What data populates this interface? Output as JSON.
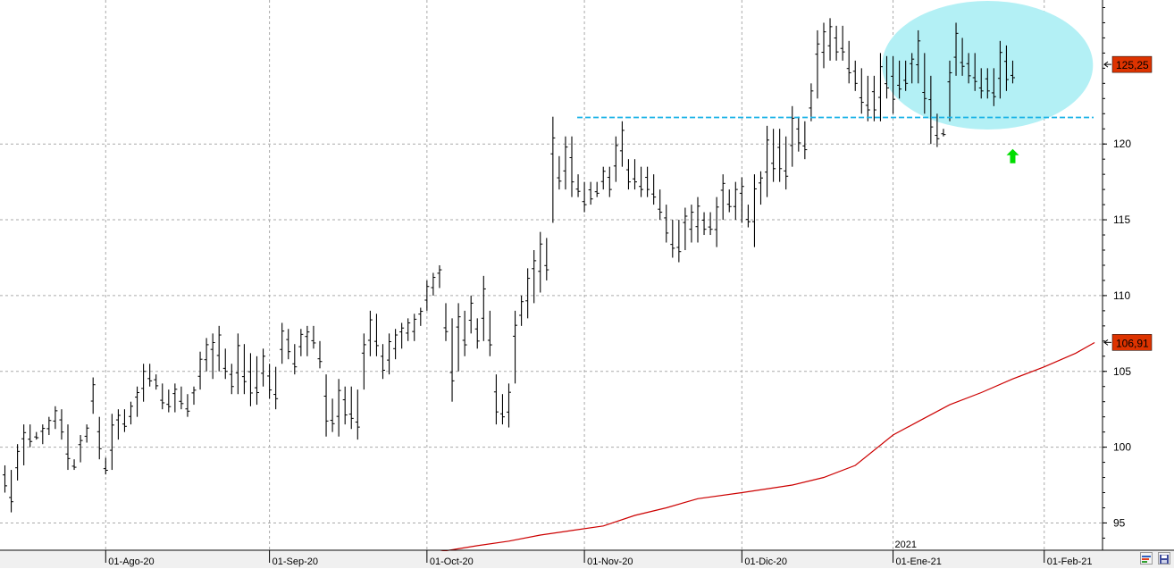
{
  "chart_data": {
    "type": "ohlc",
    "title": "",
    "xlabel": "",
    "ylabel": "",
    "ylim": [
      93.2,
      129.5
    ],
    "y_ticks": [
      95,
      100,
      105,
      110,
      115,
      120
    ],
    "x_ticks": [
      {
        "label": "01-Ago-20",
        "bar": 16
      },
      {
        "label": "01-Sep-20",
        "bar": 42
      },
      {
        "label": "01-Oct-20",
        "bar": 67
      },
      {
        "label": "01-Nov-20",
        "bar": 92
      },
      {
        "label": "01-Dic-20",
        "bar": 117
      },
      {
        "label": "01-Ene-21",
        "bar": 141
      },
      {
        "label": "01-Feb-21",
        "bar": 165
      }
    ],
    "year_marker": {
      "label": "2021",
      "bar": 141
    },
    "grid": true,
    "bars_high": [
      98.8,
      98.5,
      100.2,
      101.5,
      101.5,
      101.0,
      101.5,
      102.0,
      102.7,
      102.5,
      101.5,
      99.2,
      100.8,
      101.5,
      104.6,
      102.0,
      99.3,
      102.2,
      102.5,
      102.5,
      103.0,
      104.0,
      105.5,
      105.5,
      104.8,
      104.2,
      103.8,
      104.2,
      104.0,
      103.5,
      104.0,
      106.3,
      107.2,
      107.5,
      108.0,
      106.5,
      105.5,
      107.5,
      106.8,
      106.2,
      106.0,
      106.5,
      105.5,
      105.3,
      108.2,
      107.8,
      106.8,
      107.8,
      108.0,
      108.0,
      107.0,
      104.8,
      103.2,
      104.5,
      104.0,
      104.0,
      103.8,
      107.5,
      109.0,
      108.8,
      106.8,
      107.5,
      107.8,
      108.2,
      108.5,
      108.8,
      109.2,
      111.0,
      111.5,
      112.0,
      109.5,
      108.5,
      109.5,
      109.0,
      110.0,
      108.5,
      111.3,
      109.0,
      104.8,
      103.5,
      104.2,
      109.0,
      110.0,
      111.8,
      113.0,
      114.2,
      113.8,
      121.8,
      119.2,
      120.5,
      120.5,
      118.0,
      117.5,
      117.5,
      117.5,
      118.5,
      118.5,
      120.5,
      121.5,
      119.0,
      119.0,
      118.5,
      118.5,
      118.0,
      117.0,
      116.0,
      115.0,
      115.0,
      115.8,
      116.0,
      116.5,
      115.5,
      115.5,
      116.5,
      118.0,
      117.0,
      117.5,
      117.8,
      116.0,
      118.0,
      118.2,
      121.2,
      121.0,
      121.0,
      120.5,
      122.5,
      121.8,
      121.5,
      124.0,
      127.5,
      128.0,
      128.3,
      127.8,
      127.8,
      126.8,
      125.5,
      125.0,
      124.5,
      124.5,
      126.0,
      125.8,
      125.8,
      125.5,
      125.5,
      126.0,
      127.5,
      126.0,
      124.5,
      122.0,
      121.0,
      125.5,
      128.0,
      127.0,
      126.0,
      126.0,
      125.0,
      125.0,
      125.0,
      126.8,
      126.5,
      125.5
    ],
    "bars_low": [
      97.0,
      95.7,
      97.8,
      98.8,
      100.0,
      100.5,
      100.2,
      100.8,
      101.2,
      100.5,
      98.5,
      98.5,
      99.0,
      100.3,
      102.2,
      99.2,
      98.2,
      98.5,
      100.5,
      101.0,
      101.5,
      102.0,
      103.0,
      104.0,
      103.8,
      102.5,
      102.3,
      102.3,
      102.5,
      102.0,
      102.8,
      103.8,
      105.0,
      104.5,
      105.0,
      104.5,
      103.5,
      103.5,
      103.5,
      102.7,
      102.8,
      104.0,
      103.2,
      102.5,
      105.5,
      105.8,
      104.8,
      106.0,
      106.0,
      106.5,
      105.2,
      100.7,
      101.0,
      100.7,
      101.5,
      101.2,
      100.5,
      103.8,
      106.0,
      106.0,
      104.5,
      104.8,
      105.8,
      106.5,
      107.0,
      107.0,
      108.0,
      109.0,
      110.0,
      110.5,
      107.0,
      103.0,
      105.0,
      106.0,
      107.5,
      106.5,
      107.0,
      106.0,
      101.5,
      101.5,
      101.3,
      104.2,
      108.0,
      108.5,
      109.5,
      110.2,
      111.0,
      114.8,
      117.0,
      117.0,
      116.5,
      116.5,
      115.5,
      116.0,
      116.5,
      117.0,
      116.5,
      117.5,
      118.5,
      117.0,
      117.0,
      116.5,
      116.5,
      116.0,
      115.0,
      113.5,
      112.5,
      112.2,
      113.0,
      113.5,
      113.5,
      114.0,
      114.0,
      113.2,
      115.0,
      115.5,
      115.0,
      114.8,
      114.5,
      113.2,
      116.0,
      116.5,
      117.5,
      117.5,
      117.0,
      118.5,
      119.5,
      119.0,
      121.5,
      123.0,
      125.0,
      125.5,
      125.5,
      125.5,
      124.0,
      123.5,
      122.0,
      121.5,
      121.5,
      121.5,
      123.0,
      122.0,
      123.0,
      123.5,
      124.0,
      124.0,
      122.0,
      120.0,
      119.8,
      120.5,
      121.5,
      124.5,
      124.5,
      124.0,
      123.5,
      123.0,
      123.0,
      122.5,
      123.0,
      123.5,
      124.0
    ]
  },
  "moving_average": {
    "color": "#cc0000",
    "points": [
      [
        69,
        93.1
      ],
      [
        75,
        93.5
      ],
      [
        80,
        93.8
      ],
      [
        85,
        94.2
      ],
      [
        90,
        94.5
      ],
      [
        95,
        94.8
      ],
      [
        100,
        95.5
      ],
      [
        105,
        96.0
      ],
      [
        110,
        96.6
      ],
      [
        117,
        97.0
      ],
      [
        125,
        97.5
      ],
      [
        130,
        98.0
      ],
      [
        135,
        98.8
      ],
      [
        141,
        100.8
      ],
      [
        145,
        101.7
      ],
      [
        150,
        102.8
      ],
      [
        155,
        103.6
      ],
      [
        160,
        104.5
      ],
      [
        165,
        105.3
      ],
      [
        170,
        106.2
      ],
      [
        173,
        106.9
      ]
    ]
  },
  "price_labels": [
    {
      "text": "125,25",
      "value": 125.25,
      "bg": "#dd3300"
    },
    {
      "text": "106,91",
      "value": 106.91,
      "bg": "#dd3300"
    }
  ],
  "annotations": {
    "resistance_level": 121.75,
    "resistance_from_bar": 91,
    "resistance_color": "#1ab2e6",
    "ellipse_color": "#b3f0f5",
    "ellipse_center_bar": 156,
    "ellipse_center_value": 125.2,
    "arrow_color": "#00dd00",
    "arrow_bar": 160,
    "arrow_value": 119.2
  },
  "icons": {
    "save": "save-icon",
    "palette": "palette-icon"
  }
}
